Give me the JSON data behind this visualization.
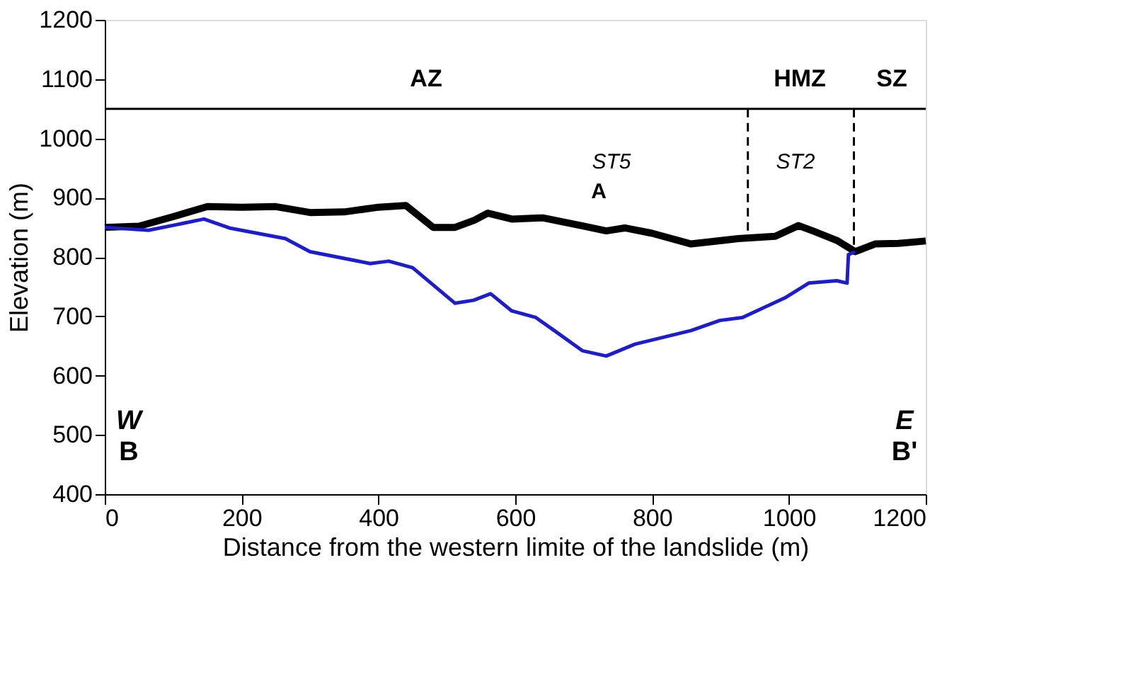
{
  "chart_data": {
    "type": "line",
    "xlabel": "Distance from the western limite of the landslide (m)",
    "ylabel": "Elevation (m)",
    "xlim": [
      0,
      1200
    ],
    "xticks": [
      0,
      200,
      400,
      600,
      800,
      1000,
      1200
    ],
    "ylim": [
      400,
      1200
    ],
    "yticks": [
      400,
      500,
      600,
      700,
      800,
      900,
      1000,
      1100,
      1200
    ],
    "grid": false,
    "marker": "none",
    "series": [
      {
        "color": "#000000",
        "x": [
          0,
          50,
          100,
          150,
          200,
          250,
          300,
          350,
          400,
          440,
          480,
          512,
          540,
          560,
          595,
          640,
          700,
          733,
          760,
          800,
          857,
          926,
          980,
          1014,
          1035,
          1070,
          1097,
          1126,
          1160,
          1200
        ],
        "values": [
          850,
          852,
          868,
          885,
          884,
          885,
          875,
          876,
          884,
          887,
          850,
          850,
          862,
          874,
          864,
          866,
          852,
          844,
          849,
          840,
          822,
          831,
          835,
          853,
          844,
          828,
          809,
          822,
          823,
          827
        ]
      },
      {
        "color": "#1f1fbf",
        "x": [
          0,
          64,
          145,
          182,
          264,
          300,
          388,
          415,
          450,
          512,
          539,
          564,
          595,
          630,
          657,
          698,
          733,
          775,
          857,
          899,
          932,
          994,
          1029,
          1070,
          1085,
          1087,
          1097
        ],
        "values": [
          850,
          845,
          864,
          849,
          831,
          809,
          789,
          793,
          782,
          722,
          727,
          738,
          709,
          698,
          676,
          642,
          633,
          653,
          676,
          693,
          698,
          731,
          756,
          760,
          756,
          804,
          809
        ]
      }
    ],
    "ref_lines": [
      {
        "axis": "y",
        "value": 1050,
        "color": "#000000",
        "line_style": "solid"
      },
      {
        "axis": "x",
        "value": 940,
        "color": "#000000",
        "line_style": "dashed"
      },
      {
        "axis": "x",
        "value": 1095,
        "color": "#000000",
        "line_style": "dashed"
      }
    ],
    "annotations": [
      "AZ",
      "HMZ",
      "SZ",
      "ST5",
      "A",
      "ST2",
      "W",
      "B",
      "E",
      "B'"
    ]
  }
}
